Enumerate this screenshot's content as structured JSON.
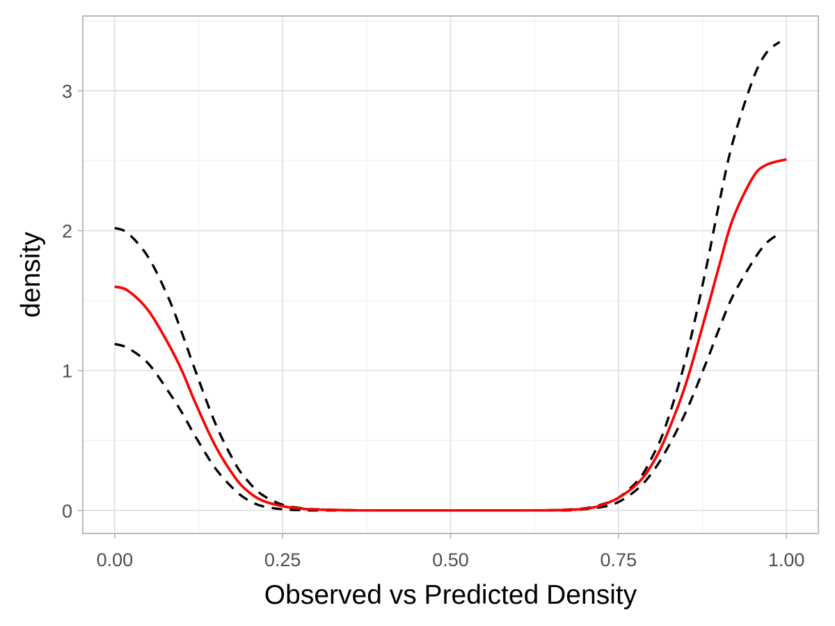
{
  "chart_data": {
    "type": "line",
    "title": "",
    "xlabel": "Observed vs Predicted Density",
    "ylabel": "density",
    "xlim": [
      -0.0475,
      1.0475
    ],
    "ylim": [
      -0.165,
      3.535
    ],
    "x_ticks": [
      0.0,
      0.25,
      0.5,
      0.75,
      1.0
    ],
    "x_tick_labels": [
      "0.00",
      "0.25",
      "0.50",
      "0.75",
      "1.00"
    ],
    "y_ticks": [
      0,
      1,
      2,
      3
    ],
    "y_tick_labels": [
      "0",
      "1",
      "2",
      "3"
    ],
    "grid": true,
    "series": [
      {
        "style": "dashed",
        "color": "#000000",
        "x": [
          0.0,
          0.02,
          0.05,
          0.08,
          0.1,
          0.12,
          0.15,
          0.18,
          0.2,
          0.22,
          0.25,
          0.28,
          0.3,
          0.35,
          0.4,
          0.5,
          0.6,
          0.65,
          0.7,
          0.73,
          0.75,
          0.78,
          0.8,
          0.82,
          0.85,
          0.88,
          0.9,
          0.92,
          0.95,
          0.97,
          0.99
        ],
        "y": [
          2.02,
          1.98,
          1.81,
          1.52,
          1.27,
          1.0,
          0.62,
          0.33,
          0.2,
          0.11,
          0.04,
          0.015,
          0.008,
          0.002,
          0.0,
          0.0,
          0.0,
          0.002,
          0.015,
          0.05,
          0.09,
          0.22,
          0.38,
          0.6,
          1.08,
          1.72,
          2.2,
          2.63,
          3.08,
          3.27,
          3.35
        ]
      },
      {
        "style": "dashed",
        "color": "#000000",
        "x": [
          0.0,
          0.02,
          0.05,
          0.08,
          0.1,
          0.12,
          0.15,
          0.18,
          0.2,
          0.22,
          0.25,
          0.28,
          0.3,
          0.35,
          0.4,
          0.5,
          0.6,
          0.65,
          0.68,
          0.72,
          0.75,
          0.78,
          0.8,
          0.82,
          0.85,
          0.88,
          0.9,
          0.92,
          0.95,
          0.97,
          0.99
        ],
        "y": [
          1.19,
          1.16,
          1.05,
          0.85,
          0.7,
          0.53,
          0.3,
          0.14,
          0.07,
          0.03,
          0.008,
          0.002,
          0.0,
          0.0,
          0.0,
          0.0,
          0.0,
          0.0,
          0.002,
          0.02,
          0.06,
          0.16,
          0.27,
          0.42,
          0.7,
          1.05,
          1.3,
          1.53,
          1.78,
          1.91,
          1.98
        ]
      },
      {
        "style": "solid",
        "color": "#000000",
        "x": [
          0.0,
          0.02,
          0.05,
          0.08,
          0.1,
          0.12,
          0.15,
          0.18,
          0.2,
          0.22,
          0.25,
          0.28,
          0.3,
          0.35,
          0.4,
          0.5,
          0.6,
          0.65,
          0.68,
          0.7,
          0.72,
          0.75,
          0.78,
          0.8,
          0.82,
          0.85,
          0.88,
          0.9,
          0.92,
          0.95,
          0.97,
          1.0
        ],
        "y": [
          1.6,
          1.57,
          1.43,
          1.19,
          1.0,
          0.77,
          0.46,
          0.23,
          0.13,
          0.07,
          0.03,
          0.012,
          0.006,
          0.001,
          0.0,
          0.0,
          0.0,
          0.001,
          0.005,
          0.012,
          0.03,
          0.09,
          0.2,
          0.33,
          0.52,
          0.9,
          1.4,
          1.75,
          2.08,
          2.38,
          2.47,
          2.51
        ]
      },
      {
        "style": "solid",
        "color": "#ff0000",
        "x": [
          0.0,
          0.02,
          0.05,
          0.08,
          0.1,
          0.12,
          0.15,
          0.18,
          0.2,
          0.22,
          0.25,
          0.28,
          0.3,
          0.35,
          0.4,
          0.5,
          0.6,
          0.65,
          0.68,
          0.7,
          0.72,
          0.75,
          0.78,
          0.8,
          0.82,
          0.85,
          0.88,
          0.9,
          0.92,
          0.95,
          0.97,
          1.0
        ],
        "y": [
          1.6,
          1.57,
          1.43,
          1.19,
          1.0,
          0.77,
          0.46,
          0.23,
          0.13,
          0.07,
          0.03,
          0.012,
          0.006,
          0.001,
          0.0,
          0.0,
          0.0,
          0.001,
          0.005,
          0.012,
          0.03,
          0.09,
          0.2,
          0.33,
          0.52,
          0.9,
          1.4,
          1.75,
          2.08,
          2.38,
          2.47,
          2.51
        ]
      }
    ]
  }
}
